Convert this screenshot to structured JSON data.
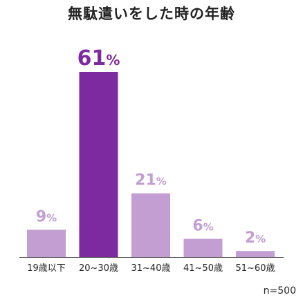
{
  "chart_data": {
    "type": "bar",
    "title": "無駄遣いをした時の年齢",
    "categories": [
      "19歳以下",
      "20~30歳",
      "31~40歳",
      "41~50歳",
      "51~60歳"
    ],
    "values": [
      9,
      61,
      21,
      6,
      2
    ],
    "value_suffix": "%",
    "xlabel": "",
    "ylabel": "",
    "ylim": [
      0,
      61
    ],
    "grid": false,
    "legend": "none",
    "highlight_index": 1,
    "colors": {
      "bar": "#c39ed3",
      "highlight": "#7d2aa0",
      "label": "#c39ed3",
      "highlight_label": "#7d2aa0",
      "axis": "#555555"
    }
  },
  "note": "n=500"
}
